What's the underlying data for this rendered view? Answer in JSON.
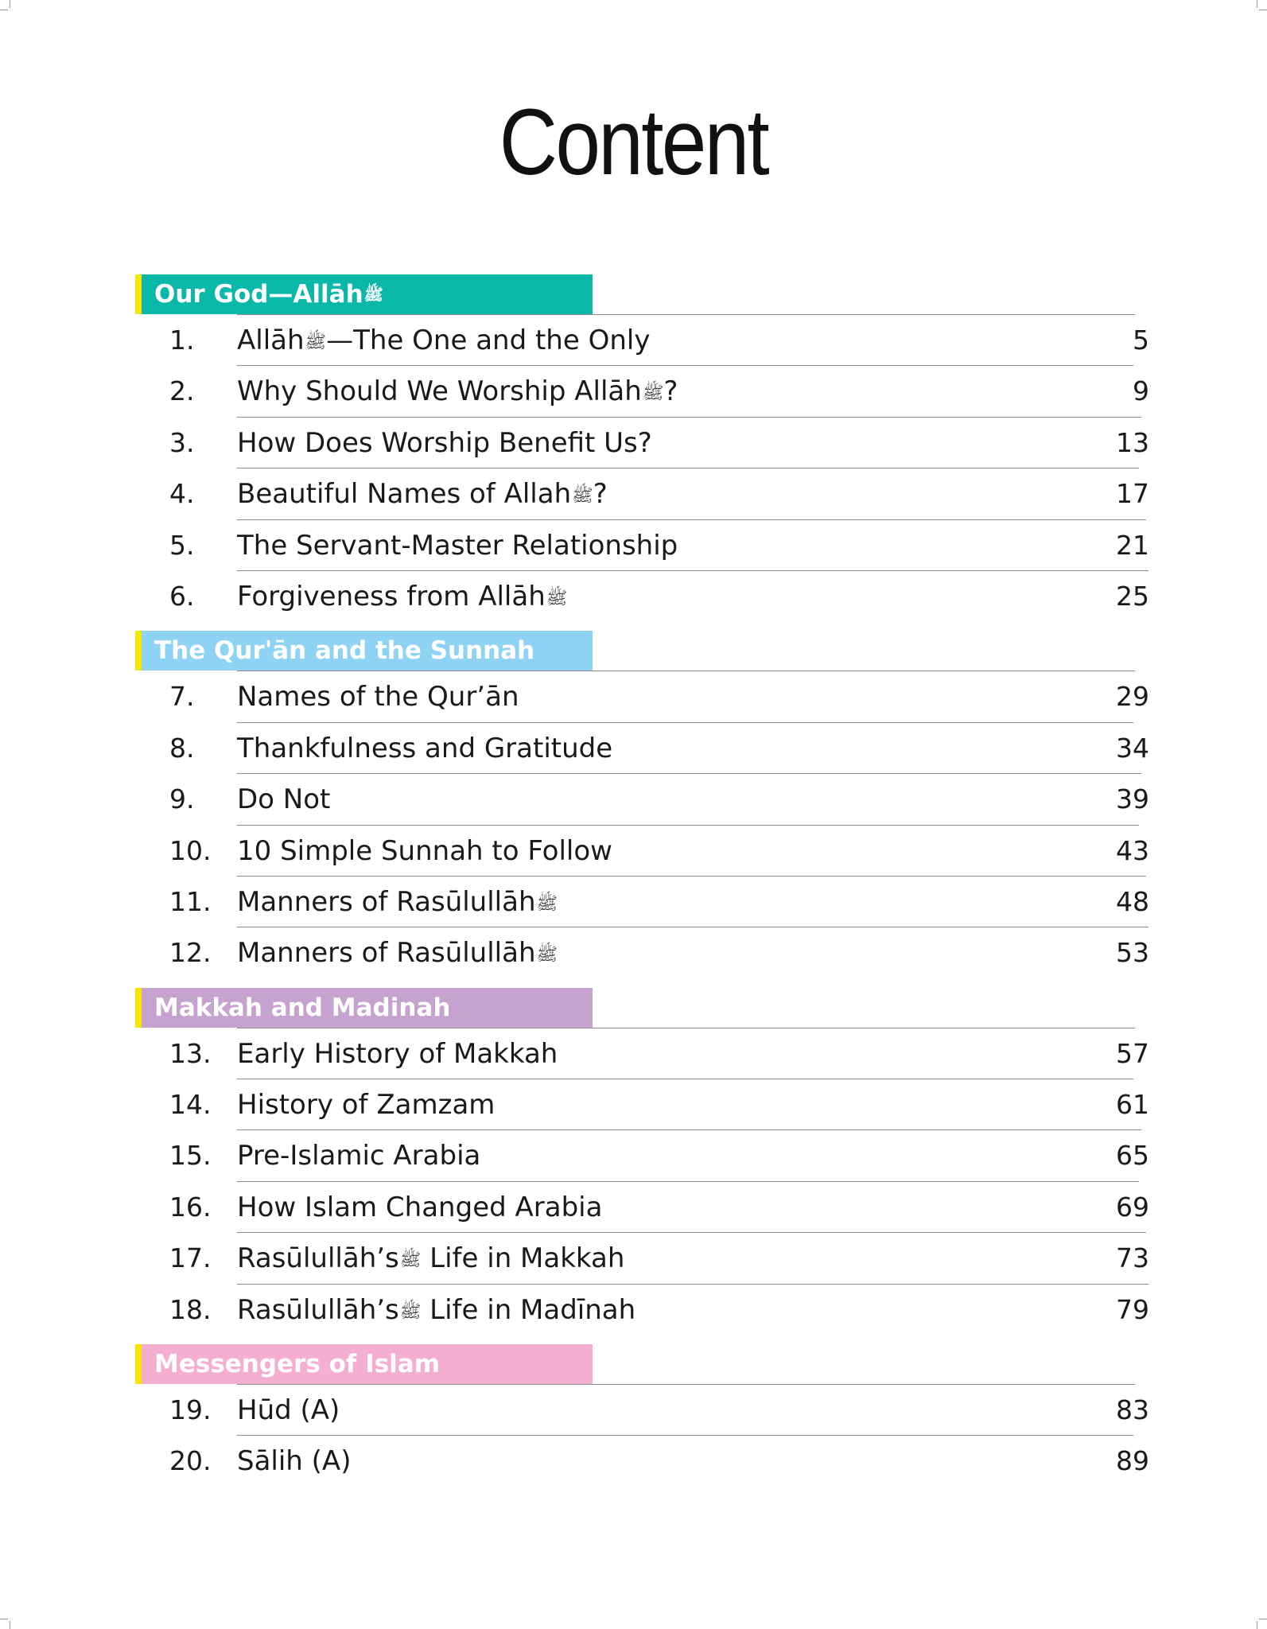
{
  "page": {
    "title": "Content"
  },
  "sections": [
    {
      "title": "Our God—Allāh",
      "title_icon": "honorific-ligature-icon",
      "color": "#0ab8a9",
      "entries": [
        {
          "num": "1.",
          "title": "Allāh",
          "icon_after": "honorific-ligature-icon",
          "title_rest": "—The One and the Only",
          "page": "5"
        },
        {
          "num": "2.",
          "title": "Why Should We Worship Allāh",
          "icon_after": "honorific-ligature-icon",
          "title_rest": "?",
          "page": "9"
        },
        {
          "num": "3.",
          "title": "How Does Worship Benefit Us?",
          "page": "13"
        },
        {
          "num": "4.",
          "title": "Beautiful Names of Allah",
          "icon_after": "honorific-ligature-icon",
          "title_rest": "?",
          "page": "17"
        },
        {
          "num": "5.",
          "title": "The Servant-Master Relationship",
          "page": "21"
        },
        {
          "num": "6.",
          "title": "Forgiveness from Allāh",
          "icon_after": "honorific-ligature-icon",
          "page": "25"
        }
      ]
    },
    {
      "title": "The Qur'ān and the Sunnah",
      "color": "#8fd3f4",
      "entries": [
        {
          "num": "7.",
          "title": "Names of the Qur’ān",
          "page": "29"
        },
        {
          "num": "8.",
          "title": "Thankfulness and Gratitude",
          "page": "34"
        },
        {
          "num": "9.",
          "title": "Do Not",
          "page": "39"
        },
        {
          "num": "10.",
          "title": "10 Simple Sunnah to Follow",
          "page": "43"
        },
        {
          "num": "11.",
          "title": "Manners of Rasūlullāh",
          "icon_after": "honorific-ligature-icon",
          "page": "48"
        },
        {
          "num": "12.",
          "title": "Manners of Rasūlullāh",
          "icon_after": "honorific-ligature-icon",
          "page": "53"
        }
      ]
    },
    {
      "title": "Makkah and Madinah",
      "color": "#c6a2cf",
      "entries": [
        {
          "num": "13.",
          "title": "Early History of Makkah",
          "page": "57"
        },
        {
          "num": "14.",
          "title": "History of Zamzam",
          "page": "61"
        },
        {
          "num": "15.",
          "title": "Pre-Islamic Arabia",
          "page": "65"
        },
        {
          "num": "16.",
          "title": "How Islam Changed Arabia",
          "page": "69"
        },
        {
          "num": "17.",
          "title": "Rasūlullāh’s",
          "icon_after": "honorific-ligature-icon",
          "title_rest": " Life in Makkah",
          "page": "73"
        },
        {
          "num": "18.",
          "title": "Rasūlullāh’s",
          "icon_after": "honorific-ligature-icon",
          "title_rest": " Life in Madīnah",
          "page": "79"
        }
      ]
    },
    {
      "title": "Messengers of Islam",
      "color": "#f4afd0",
      "entries": [
        {
          "num": "19.",
          "title": "Hūd (A)",
          "page": "83"
        },
        {
          "num": "20.",
          "title": "Sālih (A)",
          "page": "89"
        }
      ]
    }
  ]
}
